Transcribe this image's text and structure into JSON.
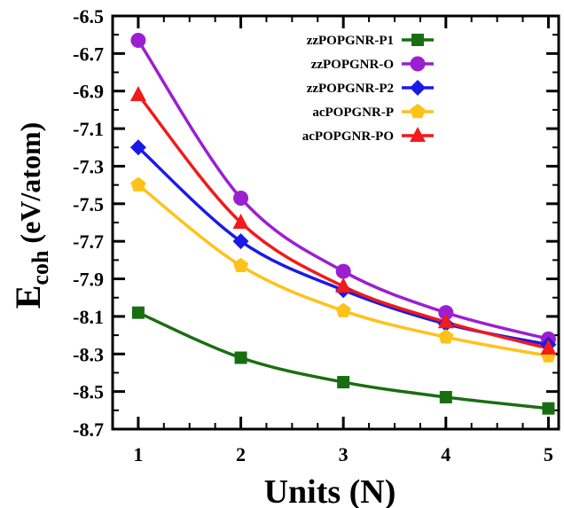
{
  "chart_data": {
    "type": "line",
    "title": "",
    "xlabel": "Units (N)",
    "ylabel_main": "E",
    "ylabel_sub": "coh",
    "ylabel_unit": " (eV/atom)",
    "x": [
      1,
      2,
      3,
      4,
      5
    ],
    "xlim": [
      0.75,
      5.1
    ],
    "ylim": [
      -8.7,
      -6.5
    ],
    "xticks": [
      1,
      2,
      3,
      4,
      5
    ],
    "yticks": [
      -6.5,
      -6.7,
      -6.9,
      -7.1,
      -7.3,
      -7.5,
      -7.7,
      -7.9,
      -8.1,
      -8.3,
      -8.5,
      -8.7
    ],
    "ytick_labels": [
      "-6.5",
      "-6.7",
      "-6.9",
      "-7.1",
      "-7.3",
      "-7.5",
      "-7.7",
      "-7.9",
      "-8.1",
      "-8.3",
      "-8.5",
      "-8.7"
    ],
    "grid": false,
    "legend_position": "top-right",
    "series": [
      {
        "name": "zzPOPGNR-P1",
        "color": "#1a6e12",
        "marker": "square",
        "values": [
          -8.08,
          -8.32,
          -8.45,
          -8.53,
          -8.59
        ]
      },
      {
        "name": "zzPOPGNR-O",
        "color": "#9b1fd1",
        "marker": "circle",
        "values": [
          -6.63,
          -7.47,
          -7.86,
          -8.08,
          -8.22
        ]
      },
      {
        "name": "zzPOPGNR-P2",
        "color": "#1a1ae6",
        "marker": "diamond",
        "values": [
          -7.2,
          -7.7,
          -7.96,
          -8.14,
          -8.25
        ]
      },
      {
        "name": "acPOPGNR-P",
        "color": "#ffc21a",
        "marker": "pentagon",
        "values": [
          -7.4,
          -7.83,
          -8.07,
          -8.21,
          -8.31
        ]
      },
      {
        "name": "acPOPGNR-PO",
        "color": "#f21a1a",
        "marker": "triangle",
        "values": [
          -6.92,
          -7.6,
          -7.94,
          -8.13,
          -8.27
        ]
      }
    ]
  }
}
